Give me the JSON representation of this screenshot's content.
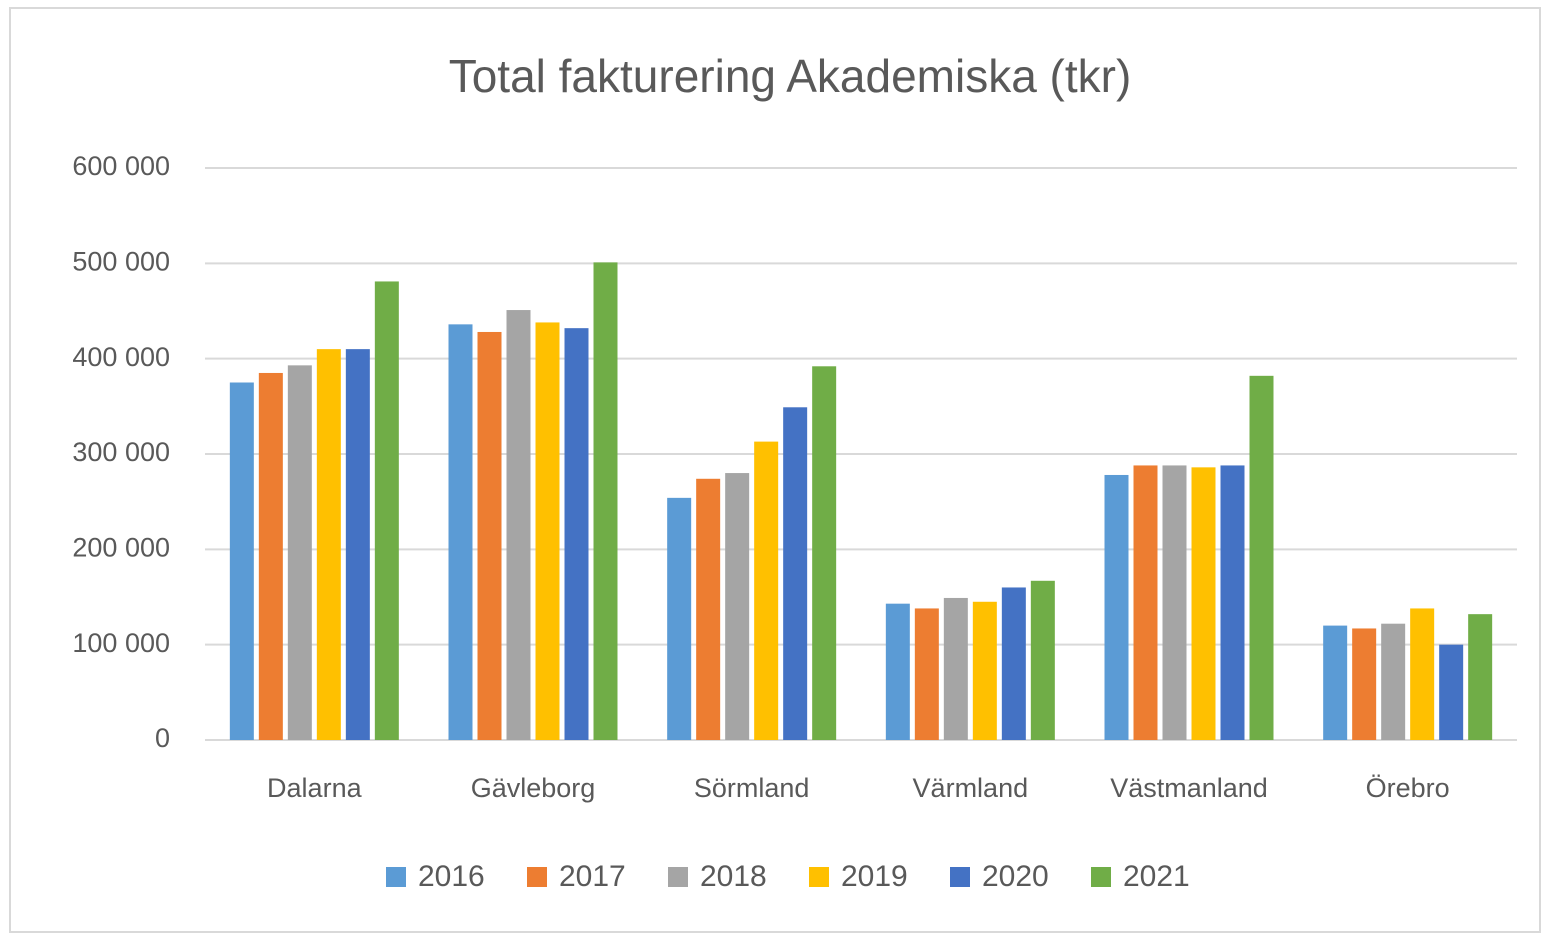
{
  "chart_data": {
    "type": "bar",
    "title": "Total fakturering Akademiska (tkr)",
    "categories": [
      "Dalarna",
      "Gävleborg",
      "Sörmland",
      "Värmland",
      "Västmanland",
      "Örebro"
    ],
    "series": [
      {
        "name": "2016",
        "color": "#5b9bd5",
        "values": [
          375000,
          436000,
          254000,
          143000,
          278000,
          120000
        ]
      },
      {
        "name": "2017",
        "color": "#ed7d31",
        "values": [
          385000,
          428000,
          274000,
          138000,
          288000,
          117000
        ]
      },
      {
        "name": "2018",
        "color": "#a5a5a5",
        "values": [
          393000,
          451000,
          280000,
          149000,
          288000,
          122000
        ]
      },
      {
        "name": "2019",
        "color": "#ffc000",
        "values": [
          410000,
          438000,
          313000,
          145000,
          286000,
          138000
        ]
      },
      {
        "name": "2020",
        "color": "#4472c4",
        "values": [
          410000,
          432000,
          349000,
          160000,
          288000,
          100000
        ]
      },
      {
        "name": "2021",
        "color": "#70ad47",
        "values": [
          481000,
          501000,
          392000,
          167000,
          382000,
          132000
        ]
      }
    ],
    "ylim": [
      0,
      600000
    ],
    "yticks": [
      0,
      {
        "value": 100000,
        "label": "100 000"
      },
      {
        "value": 200000,
        "label": "200 000"
      },
      {
        "value": 300000,
        "label": "300 000"
      },
      {
        "value": 400000,
        "label": "400 000"
      },
      {
        "value": 500000,
        "label": "500 000"
      },
      {
        "value": 600000,
        "label": "600 000"
      }
    ],
    "grid": true,
    "legend": "bottom"
  }
}
